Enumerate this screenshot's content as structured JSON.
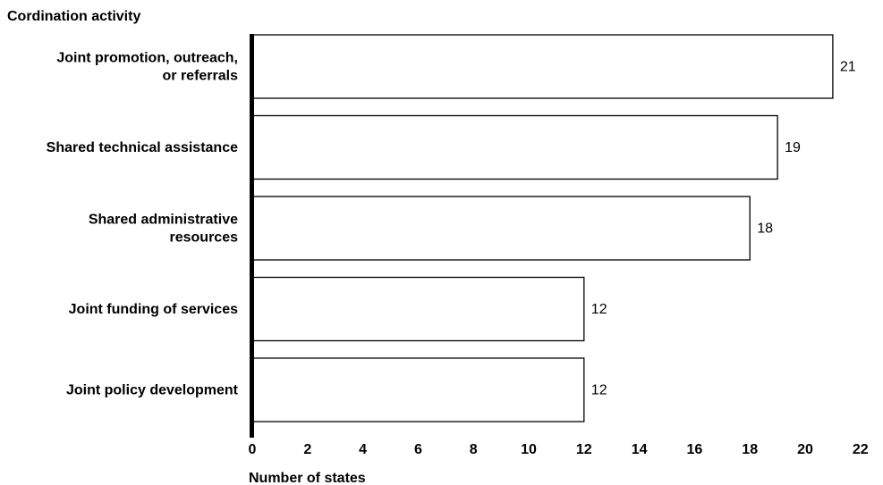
{
  "chart_data": {
    "type": "bar",
    "orientation": "horizontal",
    "ylabel": "Cordination activity",
    "xlabel": "Number of states",
    "categories": [
      [
        "Joint promotion, outreach,",
        "or referrals"
      ],
      [
        "Shared technical assistance"
      ],
      [
        "Shared administrative",
        "resources"
      ],
      [
        "Joint funding of services"
      ],
      [
        "Joint policy development"
      ]
    ],
    "values": [
      21,
      19,
      18,
      12,
      12
    ],
    "xlim": [
      0,
      22
    ],
    "xticks": [
      0,
      2,
      4,
      6,
      8,
      10,
      12,
      14,
      16,
      18,
      20,
      22
    ],
    "grid": false,
    "bar_fill": "#ffffff",
    "bar_stroke": "#000000"
  }
}
